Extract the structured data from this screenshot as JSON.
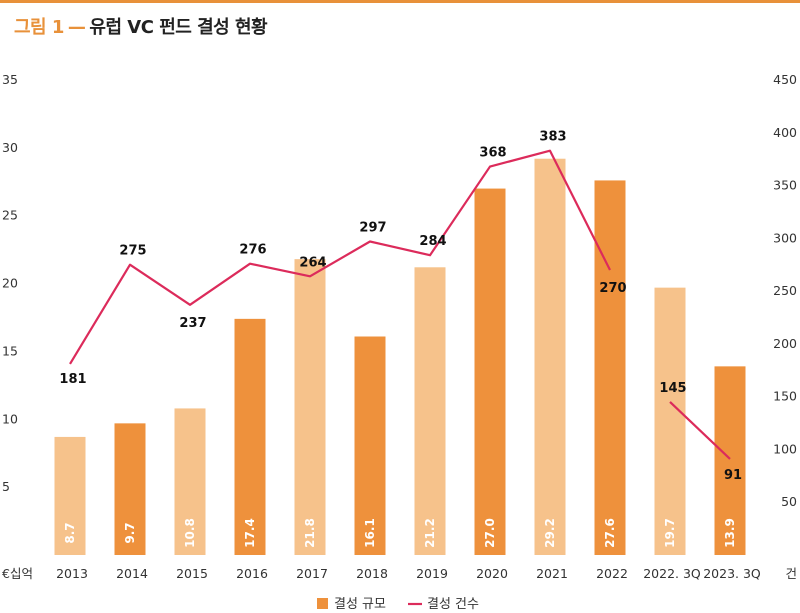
{
  "header": {
    "figure_label": "그림 1",
    "dash": "—",
    "title": "유럽 VC 펀드 결성 현황"
  },
  "colors": {
    "accent": "#e8913a",
    "bar_dark": "#ee913c",
    "bar_light": "#f6c28b",
    "line": "#dc2b5b"
  },
  "chart_data": {
    "type": "bar",
    "categories": [
      "2013",
      "2014",
      "2015",
      "2016",
      "2017",
      "2018",
      "2019",
      "2020",
      "2021",
      "2022",
      "2022. 3Q",
      "2023. 3Q"
    ],
    "series": [
      {
        "name": "결성 규모",
        "type": "bar",
        "axis": "left",
        "values": [
          8.7,
          9.7,
          10.8,
          17.4,
          21.8,
          16.1,
          21.2,
          27.0,
          29.2,
          27.6,
          19.7,
          13.9
        ],
        "labels": [
          "8.7",
          "9.7",
          "10.8",
          "17.4",
          "21.8",
          "16.1",
          "21.2",
          "27.0",
          "29.2",
          "27.6",
          "19.7",
          "13.9"
        ],
        "shade": [
          "light",
          "dark",
          "light",
          "dark",
          "light",
          "dark",
          "light",
          "dark",
          "light",
          "dark",
          "light",
          "dark"
        ]
      },
      {
        "name": "결성 건수",
        "type": "line",
        "axis": "right",
        "values": [
          181,
          275,
          237,
          276,
          264,
          297,
          284,
          368,
          383,
          270,
          145,
          91
        ],
        "segments": [
          [
            0,
            9
          ],
          [
            10,
            11
          ]
        ]
      }
    ],
    "left_axis": {
      "unit": "€십억",
      "ylim": [
        0,
        35
      ],
      "ticks": [
        "5",
        "10",
        "15",
        "20",
        "25",
        "30",
        "35"
      ],
      "tick_values": [
        5,
        10,
        15,
        20,
        25,
        30,
        35
      ]
    },
    "right_axis": {
      "unit": "건",
      "ylim": [
        0,
        450
      ],
      "ticks": [
        "50",
        "100",
        "150",
        "200",
        "250",
        "300",
        "350",
        "400",
        "450"
      ],
      "tick_values": [
        50,
        100,
        150,
        200,
        250,
        300,
        350,
        400,
        450
      ]
    },
    "grid": false,
    "legend_position": "bottom-center"
  }
}
